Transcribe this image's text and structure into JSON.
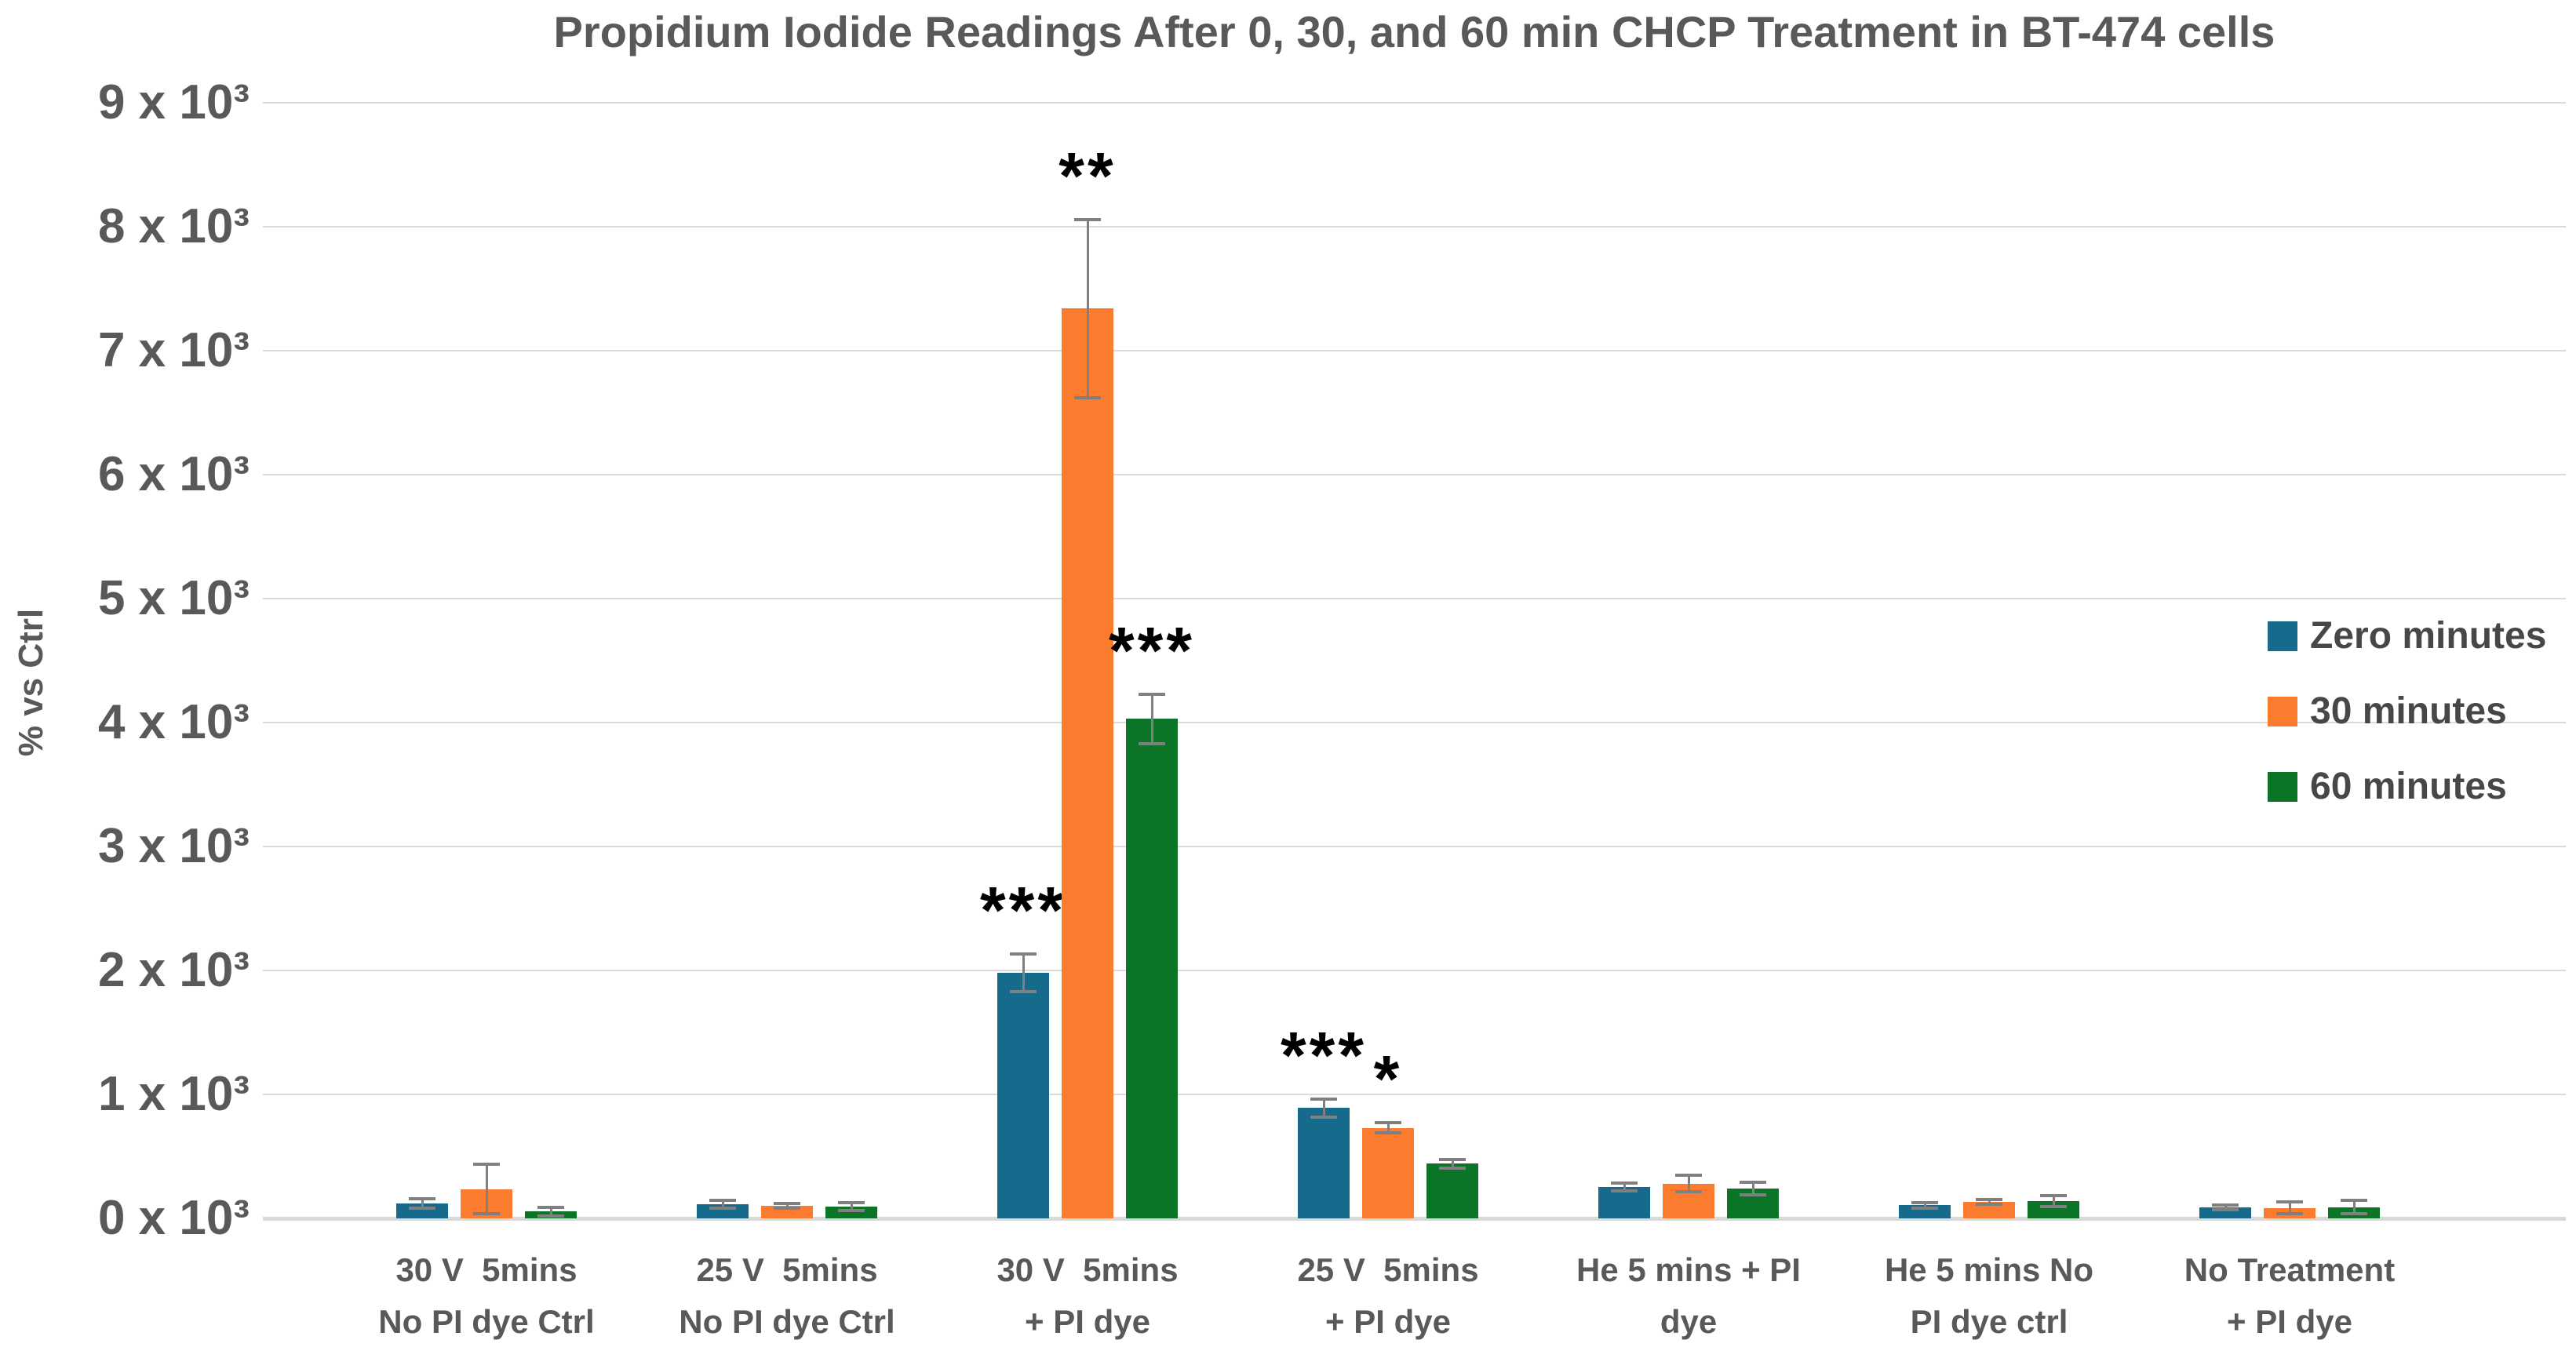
{
  "page": {
    "background": "#FFFFFF"
  },
  "chart_data": {
    "type": "bar",
    "title": "Propidium Iodide Readings After 0, 30, and 60 min CHCP Treatment in BT-474 cells",
    "ylabel": "% vs Ctrl",
    "xlabel": "",
    "grid": true,
    "legend_position": "right",
    "y_axis": {
      "min": 0,
      "max": 9000,
      "tick_step": 1000,
      "tick_labels": [
        "0 x 10³",
        "1 x 10³",
        "2 x 10³",
        "3 x 10³",
        "4 x 10³",
        "5 x 10³",
        "6 x 10³",
        "7 x 10³",
        "8 x 10³",
        "9 x 10³"
      ]
    },
    "categories": [
      "30 V  5mins\nNo PI dye Ctrl",
      "25 V  5mins\nNo PI dye Ctrl",
      "30 V  5mins\n+ PI dye",
      "25 V  5mins\n+ PI dye",
      "He 5 mins + PI\ndye",
      "He 5 mins No\nPI dye ctrl",
      "No Treatment\n+ PI dye"
    ],
    "series": [
      {
        "name": "Zero minutes",
        "color": "#166B8D",
        "values": [
          120,
          115,
          1980,
          890,
          253,
          105,
          90
        ],
        "errors": [
          40,
          30,
          150,
          75,
          30,
          20,
          20
        ],
        "stars": [
          null,
          null,
          "***",
          "***",
          null,
          null,
          null
        ]
      },
      {
        "name": "30 minutes",
        "color": "#FB7B2F",
        "values": [
          235,
          100,
          7340,
          730,
          280,
          135,
          85
        ],
        "errors": [
          200,
          20,
          720,
          40,
          65,
          20,
          45
        ],
        "stars": [
          null,
          null,
          "**",
          "*",
          null,
          null,
          null
        ]
      },
      {
        "name": "60 minutes",
        "color": "#0B7427",
        "values": [
          55,
          95,
          4030,
          440,
          240,
          140,
          90
        ],
        "errors": [
          35,
          30,
          200,
          35,
          48,
          45,
          55
        ],
        "stars": [
          null,
          null,
          "***",
          null,
          null,
          null,
          null
        ]
      }
    ],
    "colors": {
      "text": "#595959",
      "legend_text": "#474747",
      "grid": "#DBDBDB",
      "axis_line": "#D9D9D9",
      "error_bar": "#7F7F7F",
      "stars": "#000000"
    }
  }
}
